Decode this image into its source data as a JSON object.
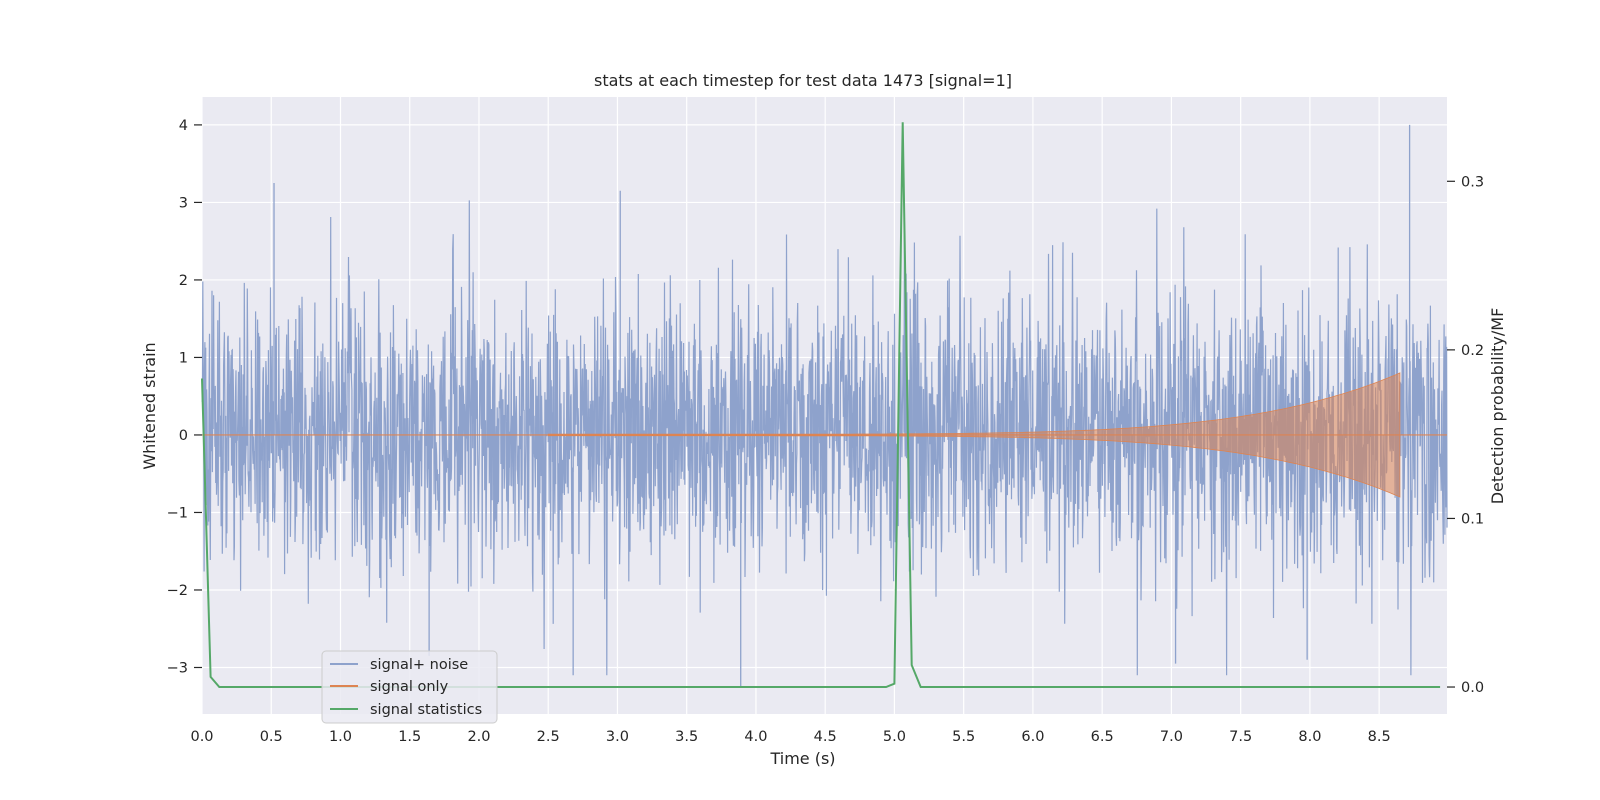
{
  "chart_data": {
    "type": "line",
    "title": "stats at each timestep for test data 1473 [signal=1]",
    "xlabel": "Time (s)",
    "ylabel": "Whitened strain",
    "ylabel_right": "Detection probability/MF",
    "xlim": [
      0,
      8.99
    ],
    "ylim": [
      -3.6,
      4.36
    ],
    "ylim_right": [
      -0.016,
      0.35
    ],
    "xticks": [
      0.0,
      0.5,
      1.0,
      1.5,
      2.0,
      2.5,
      3.0,
      3.5,
      4.0,
      4.5,
      5.0,
      5.5,
      6.0,
      6.5,
      7.0,
      7.5,
      8.0,
      8.5
    ],
    "yticks": [
      -3,
      -2,
      -1,
      0,
      1,
      2,
      3,
      4
    ],
    "yticks_right": [
      0.0,
      0.1,
      0.2,
      0.3
    ],
    "grid": true,
    "legend_position": "lower-left",
    "colors": {
      "signal_noise": "#8ea2cc",
      "signal_only": "#dd8452",
      "signal_statistics": "#55a868",
      "background": "#eaeaf2",
      "grid": "#ffffff"
    },
    "series": [
      {
        "name": "signal+ noise",
        "axis": "left",
        "description_values": "whitened noise, approx. gaussian, range about -3.3 to 4.0",
        "peaks": [
          [
            0.52,
            3.25
          ],
          [
            3.02,
            3.15
          ],
          [
            8.72,
            4.0
          ],
          [
            3.89,
            -3.25
          ],
          [
            2.68,
            -3.1
          ],
          [
            1.64,
            -2.85
          ],
          [
            7.98,
            -2.9
          ],
          [
            7.03,
            -2.95
          ]
        ]
      },
      {
        "name": "signal only",
        "axis": "left",
        "chirp_start": 2.5,
        "chirp_end": 8.65,
        "chirp_amplitude_start": 0.01,
        "chirp_amplitude_end": 0.8
      },
      {
        "name": "signal statistics",
        "axis": "right",
        "x": [
          0.0,
          0.062,
          0.125,
          4.94,
          5.0,
          5.06,
          5.125,
          5.19,
          8.94
        ],
        "y": [
          0.183,
          0.006,
          0.0,
          0.0,
          0.002,
          0.335,
          0.013,
          0.0,
          0.0
        ]
      }
    ]
  },
  "legend": {
    "items": [
      {
        "label": "signal+ noise",
        "color": "#8ea2cc"
      },
      {
        "label": "signal only",
        "color": "#dd8452"
      },
      {
        "label": "signal statistics",
        "color": "#55a868"
      }
    ]
  }
}
